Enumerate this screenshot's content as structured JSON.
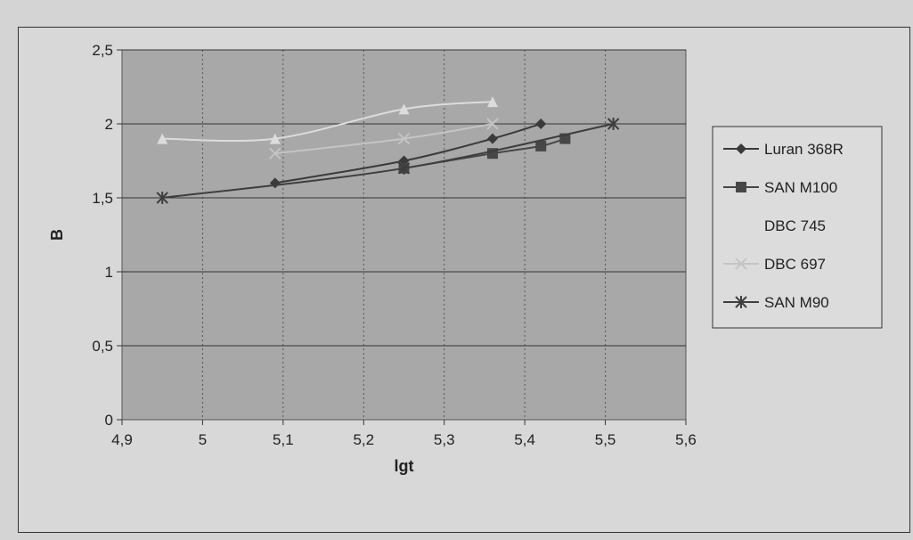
{
  "chart_data": {
    "type": "line",
    "xlabel": "lgt",
    "ylabel": "B",
    "xlim": [
      4.9,
      5.6
    ],
    "ylim": [
      0,
      2.5
    ],
    "x_ticks": [
      "4,9",
      "5",
      "5,1",
      "5,2",
      "5,3",
      "5,4",
      "5,5",
      "5,6"
    ],
    "y_ticks": [
      "0",
      "0,5",
      "1",
      "1,5",
      "2",
      "2,5"
    ],
    "grid": true,
    "legend_position": "right",
    "plot_background": "#a8a8a8",
    "series": [
      {
        "name": "Luran 368R",
        "marker": "diamond",
        "color": "#3a3a3a",
        "points": [
          [
            5.09,
            1.6
          ],
          [
            5.25,
            1.75
          ],
          [
            5.36,
            1.9
          ],
          [
            5.42,
            2.0
          ]
        ]
      },
      {
        "name": "SAN M100",
        "marker": "square",
        "color": "#474747",
        "points": [
          [
            5.25,
            1.7
          ],
          [
            5.36,
            1.8
          ],
          [
            5.42,
            1.85
          ],
          [
            5.45,
            1.9
          ]
        ]
      },
      {
        "name": "DBC 745",
        "marker": "triangle",
        "color": "#dcdcdc",
        "points": [
          [
            4.95,
            1.9
          ],
          [
            5.09,
            1.9
          ],
          [
            5.25,
            2.1
          ],
          [
            5.36,
            2.15
          ]
        ]
      },
      {
        "name": "DBC 697",
        "marker": "x",
        "color": "#c4c4c4",
        "points": [
          [
            5.09,
            1.8
          ],
          [
            5.25,
            1.9
          ],
          [
            5.36,
            2.0
          ]
        ]
      },
      {
        "name": "SAN M90",
        "marker": "asterisk",
        "color": "#3e3e3e",
        "points": [
          [
            4.95,
            1.5
          ],
          [
            5.25,
            1.7
          ],
          [
            5.51,
            2.0
          ]
        ]
      }
    ]
  }
}
